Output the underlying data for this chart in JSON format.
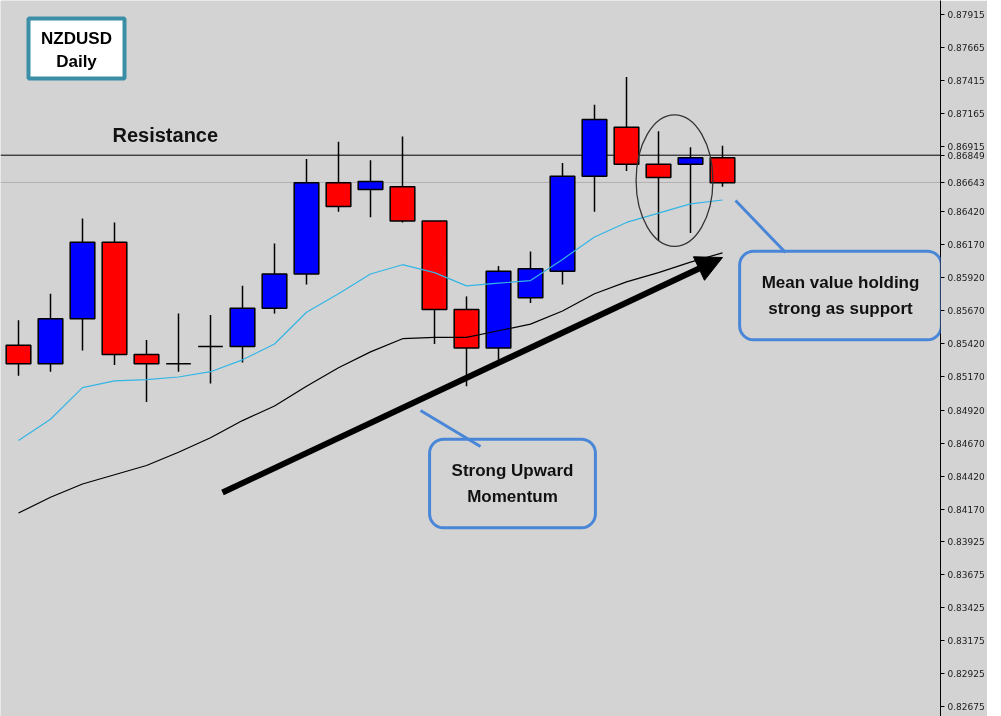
{
  "chart_data": {
    "type": "candlestick",
    "title": "NZDUSD",
    "subtitle": "Daily",
    "categories": [
      null,
      null,
      null,
      null,
      null,
      null,
      null,
      null,
      null,
      null,
      null,
      null,
      null,
      null,
      null,
      null,
      null,
      null,
      null,
      null,
      null,
      null,
      null
    ],
    "ohlc": [
      [
        0.8541,
        0.856,
        0.8518,
        0.8527
      ],
      [
        0.8527,
        0.858,
        0.8521,
        0.8561
      ],
      [
        0.8561,
        0.8637,
        0.8537,
        0.8619
      ],
      [
        0.8619,
        0.8634,
        0.8526,
        0.8534
      ],
      [
        0.8534,
        0.8545,
        0.8498,
        0.8527
      ],
      [
        0.8527,
        0.8565,
        0.8521,
        0.8527
      ],
      [
        0.854,
        0.8564,
        0.8512,
        0.854
      ],
      [
        0.854,
        0.8586,
        0.8528,
        0.8569
      ],
      [
        0.8569,
        0.8618,
        0.8565,
        0.8595
      ],
      [
        0.8595,
        0.8682,
        0.8587,
        0.8664
      ],
      [
        0.8664,
        0.8695,
        0.8642,
        0.8646
      ],
      [
        0.8659,
        0.8681,
        0.8638,
        0.8665
      ],
      [
        0.8661,
        0.8699,
        0.8634,
        0.8635
      ],
      [
        0.8635,
        0.8635,
        0.8542,
        0.8568
      ],
      [
        0.8568,
        0.8578,
        0.851,
        0.8539
      ],
      [
        0.8539,
        0.8601,
        0.853,
        0.8597
      ],
      [
        0.8577,
        0.8612,
        0.8573,
        0.8599
      ],
      [
        0.8597,
        0.8679,
        0.8587,
        0.8669
      ],
      [
        0.8669,
        0.8723,
        0.8642,
        0.8712
      ],
      [
        0.8706,
        0.8744,
        0.8673,
        0.8678
      ],
      [
        0.8678,
        0.8703,
        0.862,
        0.8668
      ],
      [
        0.8678,
        0.8691,
        0.8626,
        0.8683
      ],
      [
        0.8683,
        0.8692,
        0.8661,
        0.8664
      ]
    ],
    "colors": [
      "#ff0000",
      "#0000ff",
      "#0000ff",
      "#ff0000",
      "#ff0000",
      "#000000",
      "#000000",
      "#0000ff",
      "#0000ff",
      "#0000ff",
      "#ff0000",
      "#0000ff",
      "#ff0000",
      "#ff0000",
      "#ff0000",
      "#0000ff",
      "#0000ff",
      "#0000ff",
      "#0000ff",
      "#ff0000",
      "#ff0000",
      "#0000ff",
      "#ff0000"
    ],
    "series": [
      {
        "type": "line",
        "color": "#33b5e5",
        "values": [
          0.8469,
          0.8485,
          0.8509,
          0.8514,
          0.8515,
          0.8517,
          0.8521,
          0.853,
          0.8542,
          0.8566,
          0.858,
          0.8595,
          0.8602,
          0.8596,
          0.8586,
          0.8588,
          0.859,
          0.8606,
          0.8623,
          0.8634,
          0.8641,
          0.8648,
          0.8651
        ]
      },
      {
        "type": "line",
        "color": "#000000",
        "values": [
          0.8414,
          0.8426,
          0.8436,
          0.8443,
          0.845,
          0.846,
          0.8471,
          0.8484,
          0.8495,
          0.851,
          0.8524,
          0.8536,
          0.8546,
          0.8547,
          0.8547,
          0.8552,
          0.8557,
          0.8567,
          0.858,
          0.8589,
          0.8596,
          0.8604,
          0.8611
        ]
      }
    ],
    "ylim": [
      0.826,
      0.8802
    ],
    "yticks": [
      0.87915,
      0.87665,
      0.87415,
      0.87165,
      0.86915,
      0.86849,
      0.86643,
      {
        "value": 0.8642,
        "label": "0.86420"
      },
      {
        "value": 0.8617,
        "label": "0.86170"
      },
      {
        "value": 0.8592,
        "label": "0.85920"
      },
      {
        "value": 0.8567,
        "label": "0.85670"
      },
      {
        "value": 0.8542,
        "label": "0.85420"
      },
      {
        "value": 0.8517,
        "label": "0.85170"
      },
      {
        "value": 0.8492,
        "label": "0.84920"
      },
      {
        "value": 0.8467,
        "label": "0.84670"
      },
      {
        "value": 0.8442,
        "label": "0.84420"
      },
      {
        "value": 0.8417,
        "label": "0.84170"
      },
      0.83925,
      0.83675,
      0.83425,
      0.83175,
      0.82925,
      0.82675
    ],
    "ref_lines": [
      {
        "axis": "y",
        "value": 0.86849,
        "label": "Resistance",
        "color": "#000000"
      },
      {
        "axis": "y",
        "value": 0.86643,
        "color": "#b0b0b0"
      }
    ],
    "annotations": [
      "Strong Upward Momentum",
      "Mean value holding strong as support"
    ],
    "tick_labels": "y"
  }
}
